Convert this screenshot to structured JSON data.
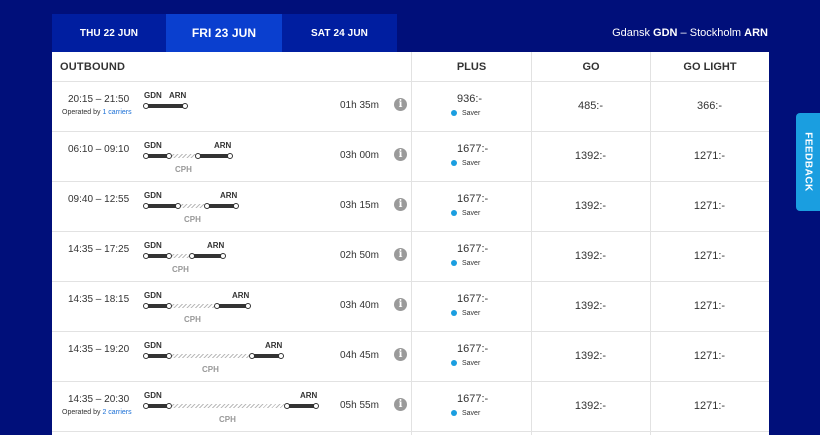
{
  "dates": [
    {
      "label": "THU 22 JUN",
      "selected": false
    },
    {
      "label": "FRI 23 JUN",
      "selected": true
    },
    {
      "label": "SAT 24 JUN",
      "selected": false
    }
  ],
  "route": {
    "from_city": "Gdansk",
    "from_code": "GDN",
    "sep": " – ",
    "to_city": "Stockholm",
    "to_code": "ARN"
  },
  "headers": {
    "outbound": "OUTBOUND",
    "plus": "PLUS",
    "go": "GO",
    "golight": "GO LIGHT"
  },
  "fare_tag": "Saver",
  "flights": [
    {
      "time": "20:15 – 21:50",
      "operated_prefix": "Operated by ",
      "operated_link": "1 carriers",
      "from": "GDN",
      "to": "ARN",
      "via": "",
      "duration": "01h 35m",
      "plus": "936:-",
      "go": "485:-",
      "golight": "366:-"
    },
    {
      "time": "06:10 – 09:10",
      "operated_prefix": "",
      "operated_link": "",
      "from": "GDN",
      "to": "ARN",
      "via": "CPH",
      "duration": "03h 00m",
      "plus": "1677:-",
      "go": "1392:-",
      "golight": "1271:-"
    },
    {
      "time": "09:40 – 12:55",
      "operated_prefix": "",
      "operated_link": "",
      "from": "GDN",
      "to": "ARN",
      "via": "CPH",
      "duration": "03h 15m",
      "plus": "1677:-",
      "go": "1392:-",
      "golight": "1271:-"
    },
    {
      "time": "14:35 – 17:25",
      "operated_prefix": "",
      "operated_link": "",
      "from": "GDN",
      "to": "ARN",
      "via": "CPH",
      "duration": "02h 50m",
      "plus": "1677:-",
      "go": "1392:-",
      "golight": "1271:-"
    },
    {
      "time": "14:35 – 18:15",
      "operated_prefix": "",
      "operated_link": "",
      "from": "GDN",
      "to": "ARN",
      "via": "CPH",
      "duration": "03h 40m",
      "plus": "1677:-",
      "go": "1392:-",
      "golight": "1271:-"
    },
    {
      "time": "14:35 – 19:20",
      "operated_prefix": "",
      "operated_link": "",
      "from": "GDN",
      "to": "ARN",
      "via": "CPH",
      "duration": "04h 45m",
      "plus": "1677:-",
      "go": "1392:-",
      "golight": "1271:-"
    },
    {
      "time": "14:35 – 20:30",
      "operated_prefix": "Operated by ",
      "operated_link": "2 carriers",
      "from": "GDN",
      "to": "ARN",
      "via": "CPH",
      "duration": "05h 55m",
      "plus": "1677:-",
      "go": "1392:-",
      "golight": "1271:-"
    }
  ],
  "feedback": "FEEDBACK",
  "info_glyph": "i",
  "colors": {
    "background": "#000f7a",
    "tab": "#001ea0",
    "tab_selected": "#0a3fcf",
    "accent": "#1a9ee0",
    "link": "#1a6fd6"
  }
}
